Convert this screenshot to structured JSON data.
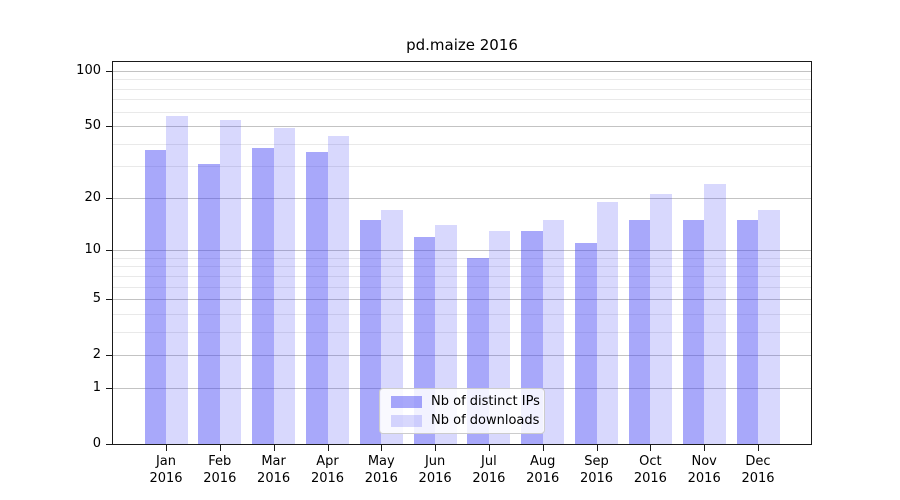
{
  "chart_data": {
    "type": "bar",
    "title": "pd.maize 2016",
    "categories": [
      "Jan",
      "Feb",
      "Mar",
      "Apr",
      "May",
      "Jun",
      "Jul",
      "Aug",
      "Sep",
      "Oct",
      "Nov",
      "Dec"
    ],
    "category_year": "2016",
    "series": [
      {
        "name": "Nb of distinct IPs",
        "color": "rgba(70,70,245,0.47)",
        "values": [
          37,
          31,
          38,
          36,
          15,
          12,
          9,
          13,
          11,
          15,
          15,
          15
        ]
      },
      {
        "name": "Nb of downloads",
        "color": "rgba(70,70,245,0.21)",
        "values": [
          57,
          54,
          49,
          44,
          17,
          14,
          13,
          15,
          19,
          21,
          24,
          17
        ]
      }
    ],
    "xlabel": "",
    "ylabel": "",
    "yscale": "log(1+x)",
    "y_major_ticks": [
      0,
      1,
      2,
      5,
      10,
      20,
      50,
      100
    ],
    "y_minor_ticks": [
      3,
      4,
      6,
      7,
      8,
      9,
      30,
      40,
      60,
      70,
      80,
      90
    ],
    "ylim": [
      0,
      111
    ],
    "grid": true,
    "legend_position": "lower center"
  },
  "colors": {
    "major_grid": "#c3c3c3",
    "minor_grid": "#e9e9e9",
    "axis": "#1a1a1a",
    "legend_border": "#cccccc"
  }
}
